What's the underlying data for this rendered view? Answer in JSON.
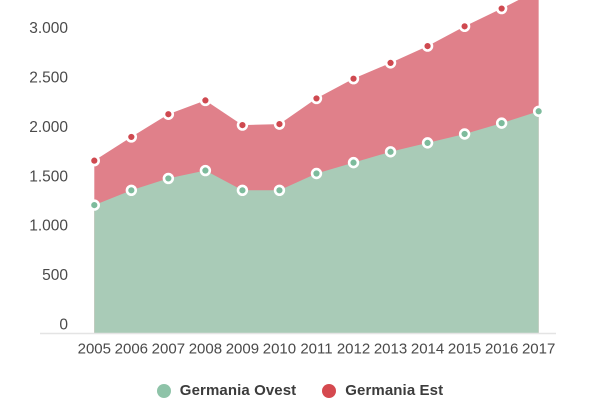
{
  "colors": {
    "background": "#ffffff",
    "axis_line": "#e4e4e4",
    "tick_label": "#4a4a4a",
    "legend_text": "#3c3c3c",
    "ovest_area": "#a9cbb7",
    "ovest_dot": "#7dbb9c",
    "ovest_legend": "#8ec3a8",
    "est_area": "#e0808a",
    "est_dot": "#cf4950",
    "est_legend": "#d5494f"
  },
  "chart_data": {
    "type": "area",
    "title": "",
    "categories": [
      "2005",
      "2006",
      "2007",
      "2008",
      "2009",
      "2010",
      "2011",
      "2012",
      "2013",
      "2014",
      "2015",
      "2016",
      "2017"
    ],
    "series": [
      {
        "name": "Germania Ovest",
        "values": [
          1300,
          1450,
          1570,
          1650,
          1450,
          1450,
          1620,
          1730,
          1840,
          1930,
          2020,
          2130,
          2250
        ]
      },
      {
        "name": "Germania Est",
        "values": [
          1750,
          1990,
          2220,
          2360,
          2110,
          2120,
          2380,
          2580,
          2740,
          2910,
          3110,
          3290,
          3480
        ],
        "clipped_top": true
      }
    ],
    "y_axis": {
      "tick_values": [
        0,
        500,
        1000,
        1500,
        2000,
        2500,
        3000
      ],
      "tick_labels": [
        "0",
        "500",
        "1.000",
        "1.500",
        "2.000",
        "2.500",
        "3.000"
      ],
      "visible_range": [
        0,
        3375
      ]
    },
    "x_axis": {
      "tick_labels": [
        "2005",
        "2006",
        "2007",
        "2008",
        "2009",
        "2010",
        "2011",
        "2012",
        "2013",
        "2014",
        "2015",
        "2016",
        "2017"
      ]
    },
    "grid": "baseline-only",
    "legend_position": "bottom-center",
    "markers": "white-ring-dots"
  },
  "legend": {
    "items": [
      {
        "label": "Germania Ovest"
      },
      {
        "label": "Germania Est"
      }
    ]
  }
}
